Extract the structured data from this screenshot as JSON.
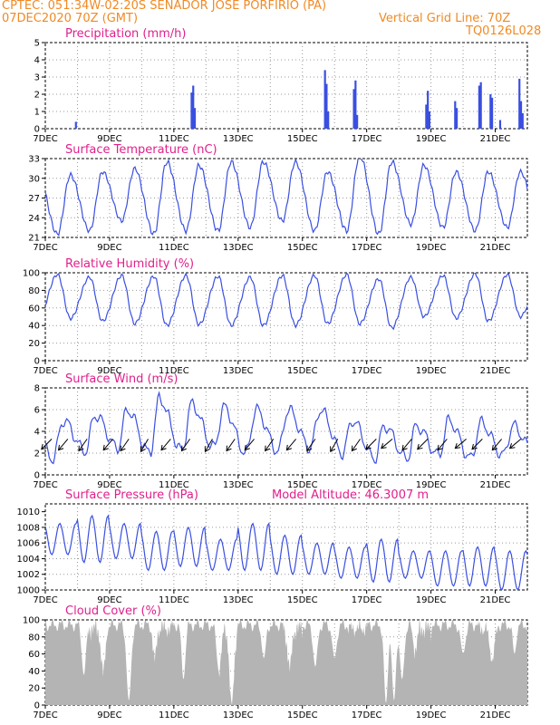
{
  "header": {
    "line1": "CPTEC:   051:34W-02:20S   SENADOR JOSE PORFIRIO (PA)",
    "line2_left": "07DEC2020 70Z (GMT)",
    "line2_right": "Vertical Grid Line: 70Z",
    "line3_right": "TQ0126L028"
  },
  "model_altitude": "Model Altitude: 46.3007 m",
  "x_ticks": [
    "7DEC",
    "9DEC",
    "11DEC",
    "13DEC",
    "15DEC",
    "17DEC",
    "19DEC",
    "21DEC"
  ],
  "colors": {
    "series": "#3a4fe0",
    "title": "#e0208c",
    "header": "#f08a24",
    "cloud": "#b4b4b4"
  },
  "chart_data": [
    {
      "type": "bar",
      "title": "Precipitation (mm/h)",
      "ylim": [
        0,
        5
      ],
      "yticks": [
        "0",
        "1",
        "2",
        "3",
        "4",
        "5"
      ],
      "events": [
        {
          "day": 7.95,
          "v": 0.4
        },
        {
          "day": 11.55,
          "v": 2.1
        },
        {
          "day": 11.6,
          "v": 2.5
        },
        {
          "day": 11.65,
          "v": 1.2
        },
        {
          "day": 15.7,
          "v": 3.4
        },
        {
          "day": 15.75,
          "v": 2.6
        },
        {
          "day": 15.8,
          "v": 1.0
        },
        {
          "day": 16.6,
          "v": 2.3
        },
        {
          "day": 16.65,
          "v": 2.8
        },
        {
          "day": 16.7,
          "v": 0.8
        },
        {
          "day": 18.85,
          "v": 1.4
        },
        {
          "day": 18.9,
          "v": 2.2
        },
        {
          "day": 18.95,
          "v": 1.0
        },
        {
          "day": 19.75,
          "v": 1.6
        },
        {
          "day": 19.8,
          "v": 1.2
        },
        {
          "day": 20.5,
          "v": 2.5
        },
        {
          "day": 20.55,
          "v": 2.7
        },
        {
          "day": 20.85,
          "v": 2.0
        },
        {
          "day": 20.9,
          "v": 1.8
        },
        {
          "day": 21.15,
          "v": 0.5
        },
        {
          "day": 21.75,
          "v": 2.9
        },
        {
          "day": 21.8,
          "v": 1.6
        },
        {
          "day": 21.85,
          "v": 0.9
        }
      ]
    },
    {
      "type": "line",
      "title": "Surface Temperature (nC)",
      "ylim": [
        21,
        33
      ],
      "yticks": [
        "21",
        "24",
        "27",
        "30",
        "33"
      ],
      "mins": [
        21.5,
        22.0,
        23.5,
        21.5,
        22.0,
        22.0,
        22.5,
        23.5,
        22.0,
        22.0,
        21.5,
        23.0,
        22.5,
        22.0,
        22.5
      ],
      "maxs": [
        30.5,
        31.0,
        31.5,
        32.5,
        32.0,
        32.5,
        32.5,
        32.5,
        31.0,
        33.5,
        32.5,
        32.0,
        31.0,
        31.0,
        31.0
      ]
    },
    {
      "type": "line",
      "title": "Relative Humidity (%)",
      "ylim": [
        0,
        100
      ],
      "yticks": [
        "0",
        "20",
        "40",
        "60",
        "80",
        "100"
      ],
      "mins": [
        48,
        45,
        42,
        40,
        41,
        40,
        40,
        40,
        42,
        42,
        37,
        50,
        48,
        45,
        50
      ],
      "maxs": [
        98,
        95,
        97,
        96,
        97,
        96,
        95,
        97,
        97,
        98,
        93,
        95,
        97,
        99,
        98
      ]
    },
    {
      "type": "line",
      "title": "Surface Wind (m/s)",
      "ylim": [
        0,
        8
      ],
      "yticks": [
        "0",
        "2",
        "4",
        "6",
        "8"
      ],
      "mins": [
        1.5,
        2.2,
        2.5,
        2.0,
        2.2,
        2.5,
        2.0,
        2.2,
        2.5,
        2.0,
        1.5,
        1.5,
        1.8,
        1.5,
        1.8
      ],
      "maxs": [
        5.0,
        5.5,
        6.0,
        7.0,
        6.5,
        6.2,
        6.0,
        6.0,
        6.0,
        5.0,
        4.5,
        4.5,
        5.0,
        4.8,
        4.5
      ],
      "arrows": [
        {
          "day": 7.2,
          "dir": 225
        },
        {
          "day": 7.7,
          "dir": 220
        },
        {
          "day": 8.3,
          "dir": 215
        },
        {
          "day": 9.1,
          "dir": 220
        },
        {
          "day": 9.6,
          "dir": 215
        },
        {
          "day": 10.2,
          "dir": 210
        },
        {
          "day": 10.9,
          "dir": 220
        },
        {
          "day": 11.5,
          "dir": 215
        },
        {
          "day": 12.2,
          "dir": 210
        },
        {
          "day": 12.9,
          "dir": 215
        },
        {
          "day": 13.5,
          "dir": 220
        },
        {
          "day": 14.1,
          "dir": 215
        },
        {
          "day": 14.8,
          "dir": 220
        },
        {
          "day": 15.4,
          "dir": 215
        },
        {
          "day": 16.1,
          "dir": 210
        },
        {
          "day": 16.8,
          "dir": 215
        },
        {
          "day": 17.3,
          "dir": 225
        },
        {
          "day": 17.8,
          "dir": 230
        },
        {
          "day": 18.4,
          "dir": 220
        },
        {
          "day": 18.9,
          "dir": 225
        },
        {
          "day": 19.5,
          "dir": 220
        },
        {
          "day": 20.1,
          "dir": 230
        },
        {
          "day": 20.6,
          "dir": 225
        },
        {
          "day": 21.2,
          "dir": 220
        },
        {
          "day": 21.8,
          "dir": 230
        }
      ]
    },
    {
      "type": "line",
      "title": "Surface Pressure (hPa)",
      "ylim": [
        1000,
        1011
      ],
      "yticks": [
        "1000",
        "1002",
        "1004",
        "1006",
        "1008",
        "1010"
      ],
      "maxs": [
        1008.5,
        1009.5,
        1008.5,
        1007.5,
        1008.0,
        1006.5,
        1008.5,
        1007.0,
        1006.0,
        1005.5,
        1006.5,
        1005.0,
        1005.0,
        1005.5,
        1005.0
      ],
      "mins": [
        1004.5,
        1003.5,
        1004.0,
        1002.5,
        1003.0,
        1002.5,
        1002.5,
        1002.0,
        1002.0,
        1001.5,
        1001.0,
        1001.5,
        1000.5,
        1000.5,
        1000.0
      ]
    },
    {
      "type": "area",
      "title": "Cloud Cover (%)",
      "ylim": [
        0,
        100
      ],
      "yticks": [
        "0",
        "20",
        "40",
        "60",
        "80",
        "100"
      ],
      "dips": [
        {
          "day": 8.2,
          "v": 35
        },
        {
          "day": 8.8,
          "v": 45
        },
        {
          "day": 9.6,
          "v": 5
        },
        {
          "day": 10.4,
          "v": 60
        },
        {
          "day": 11.3,
          "v": 30
        },
        {
          "day": 12.4,
          "v": 40
        },
        {
          "day": 12.8,
          "v": 3
        },
        {
          "day": 13.8,
          "v": 55
        },
        {
          "day": 14.6,
          "v": 50
        },
        {
          "day": 15.4,
          "v": 45
        },
        {
          "day": 16.0,
          "v": 55
        },
        {
          "day": 17.6,
          "v": 2
        },
        {
          "day": 17.85,
          "v": 5
        },
        {
          "day": 18.1,
          "v": 30
        },
        {
          "day": 18.5,
          "v": 65
        },
        {
          "day": 20.0,
          "v": 60
        },
        {
          "day": 20.9,
          "v": 55
        },
        {
          "day": 21.6,
          "v": 60
        }
      ]
    }
  ]
}
